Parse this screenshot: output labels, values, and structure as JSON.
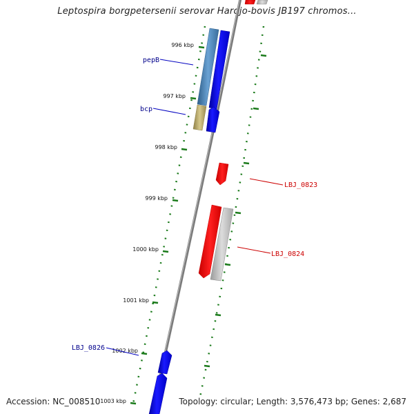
{
  "title": "Leptospira borgpetersenii serovar Hardjo-bovis JB197 chromos...",
  "footer": {
    "accession": "Accession: NC_008510",
    "info": "Topology: circular; Length: 3,576,473 bp; Genes: 2,687"
  },
  "colors": {
    "forward": "#0000ff",
    "reverse": "#ff0000",
    "pepB_fill": "#4a86b8",
    "bcp_fill": "#b8a860",
    "other": "#c0c0c0",
    "backbone": "#808080",
    "tick": "#1a7a1a",
    "forward_label": "#00008b",
    "reverse_label": "#cc0000"
  },
  "ticks": [
    {
      "label": "996 kbp"
    },
    {
      "label": "997 kbp"
    },
    {
      "label": "998 kbp"
    },
    {
      "label": "999 kbp"
    },
    {
      "label": "1000 kbp"
    },
    {
      "label": "1001 kbp"
    },
    {
      "label": "1002 kbp"
    },
    {
      "label": "1003 kbp"
    }
  ],
  "gene_labels": [
    {
      "name": "pepB",
      "strand": "forward"
    },
    {
      "name": "bcp",
      "strand": "forward"
    },
    {
      "name": "LBJ_0823",
      "strand": "reverse"
    },
    {
      "name": "LBJ_0824",
      "strand": "reverse"
    },
    {
      "name": "LBJ_0826",
      "strand": "forward"
    }
  ]
}
